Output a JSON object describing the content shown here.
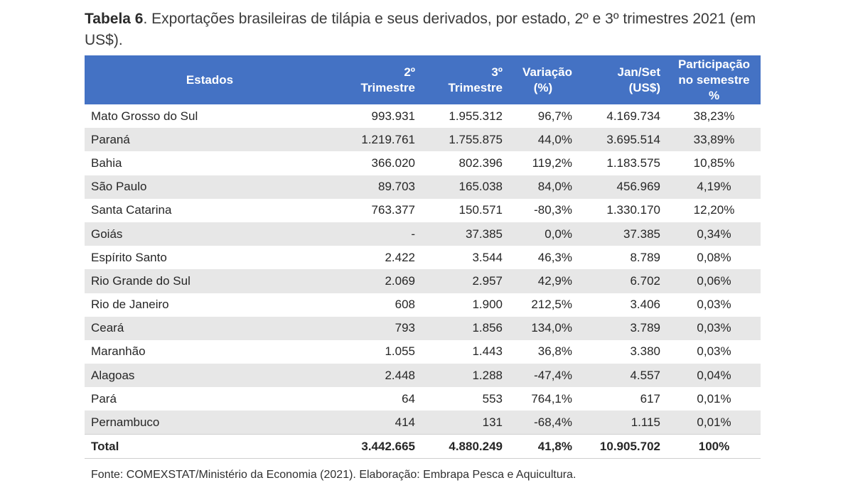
{
  "caption": {
    "label": "Tabela 6",
    "text": ". Exportações brasileiras de tilápia e seus derivados, por estado, 2º e 3º trimestres 2021 (em US$)."
  },
  "table": {
    "headers": {
      "state": [
        "Estados"
      ],
      "q2": [
        "2º",
        "Trimestre"
      ],
      "q3": [
        "3º",
        "Trimestre"
      ],
      "variation": [
        "Variação",
        "(%)"
      ],
      "jan_set": [
        "Jan/Set",
        "(US$)"
      ],
      "share": [
        "Participação",
        "no semestre %"
      ]
    },
    "rows": [
      {
        "state": "Mato Grosso do Sul",
        "q2": "993.931",
        "q3": "1.955.312",
        "variation": "96,7%",
        "jan_set": "4.169.734",
        "share": "38,23%"
      },
      {
        "state": "Paraná",
        "q2": "1.219.761",
        "q3": "1.755.875",
        "variation": "44,0%",
        "jan_set": "3.695.514",
        "share": "33,89%"
      },
      {
        "state": "Bahia",
        "q2": "366.020",
        "q3": "802.396",
        "variation": "119,2%",
        "jan_set": "1.183.575",
        "share": "10,85%"
      },
      {
        "state": "São Paulo",
        "q2": "89.703",
        "q3": "165.038",
        "variation": "84,0%",
        "jan_set": "456.969",
        "share": "4,19%"
      },
      {
        "state": "Santa Catarina",
        "q2": "763.377",
        "q3": "150.571",
        "variation": "-80,3%",
        "jan_set": "1.330.170",
        "share": "12,20%"
      },
      {
        "state": "Goiás",
        "q2": "-",
        "q3": "37.385",
        "variation": "0,0%",
        "jan_set": "37.385",
        "share": "0,34%"
      },
      {
        "state": "Espírito Santo",
        "q2": "2.422",
        "q3": "3.544",
        "variation": "46,3%",
        "jan_set": "8.789",
        "share": "0,08%"
      },
      {
        "state": "Rio Grande do Sul",
        "q2": "2.069",
        "q3": "2.957",
        "variation": "42,9%",
        "jan_set": "6.702",
        "share": "0,06%"
      },
      {
        "state": "Rio de Janeiro",
        "q2": "608",
        "q3": "1.900",
        "variation": "212,5%",
        "jan_set": "3.406",
        "share": "0,03%"
      },
      {
        "state": "Ceará",
        "q2": "793",
        "q3": "1.856",
        "variation": "134,0%",
        "jan_set": "3.789",
        "share": "0,03%"
      },
      {
        "state": "Maranhão",
        "q2": "1.055",
        "q3": "1.443",
        "variation": "36,8%",
        "jan_set": "3.380",
        "share": "0,03%"
      },
      {
        "state": "Alagoas",
        "q2": "2.448",
        "q3": "1.288",
        "variation": "-47,4%",
        "jan_set": "4.557",
        "share": "0,04%"
      },
      {
        "state": "Pará",
        "q2": "64",
        "q3": "553",
        "variation": "764,1%",
        "jan_set": "617",
        "share": "0,01%"
      },
      {
        "state": "Pernambuco",
        "q2": "414",
        "q3": "131",
        "variation": "-68,4%",
        "jan_set": "1.115",
        "share": "0,01%"
      }
    ],
    "total": {
      "state": "Total",
      "q2": "3.442.665",
      "q3": "4.880.249",
      "variation": "41,8%",
      "jan_set": "10.905.702",
      "share": "100%"
    }
  },
  "source": "Fonte: COMEXSTAT/Ministério da Economia (2021). Elaboração: Embrapa Pesca e Aquicultura.",
  "colors": {
    "header_bg": "#4472c4",
    "header_text": "#ffffff",
    "stripe": "#e7e7e7"
  }
}
